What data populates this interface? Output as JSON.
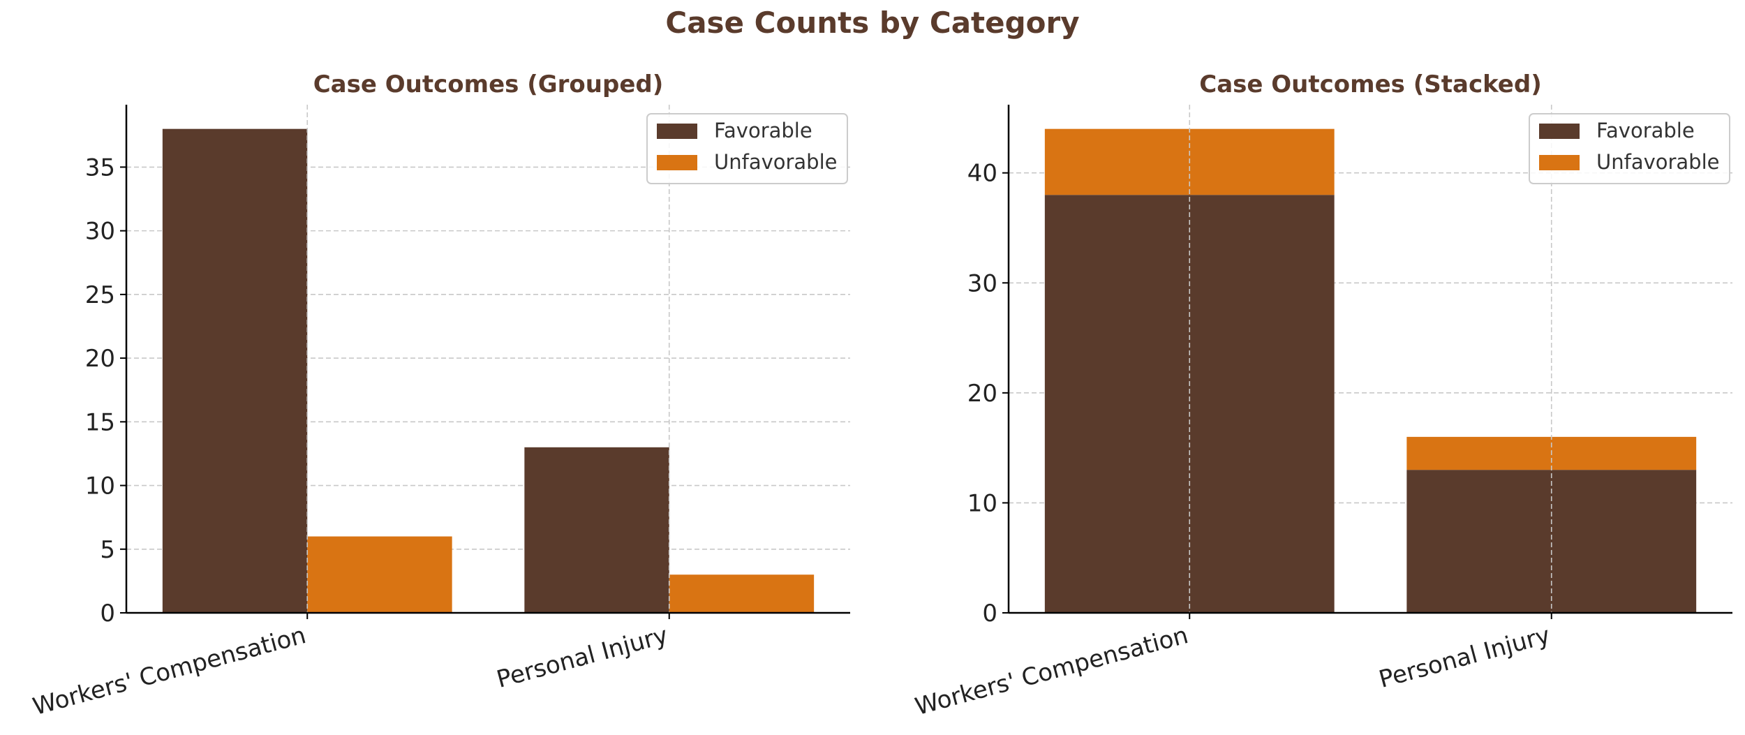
{
  "figure_title": "Case Counts by Category",
  "colors": {
    "favorable": "#5a3b2c",
    "unfavorable": "#d97413",
    "title": "#5a3b2c",
    "grid": "#c8c8c8"
  },
  "chart_data": [
    {
      "type": "bar",
      "mode": "grouped",
      "title": "Case Outcomes (Grouped)",
      "categories": [
        "Workers' Compensation",
        "Personal Injury"
      ],
      "series": [
        {
          "name": "Favorable",
          "values": [
            38,
            13
          ]
        },
        {
          "name": "Unfavorable",
          "values": [
            6,
            3
          ]
        }
      ],
      "ylim": [
        0,
        39.9
      ],
      "yticks": [
        0,
        5,
        10,
        15,
        20,
        25,
        30,
        35
      ],
      "grid": true,
      "legend": "top-right",
      "xlabel": "",
      "ylabel": ""
    },
    {
      "type": "bar",
      "mode": "stacked",
      "title": "Case Outcomes (Stacked)",
      "categories": [
        "Workers' Compensation",
        "Personal Injury"
      ],
      "series": [
        {
          "name": "Favorable",
          "values": [
            38,
            13
          ]
        },
        {
          "name": "Unfavorable",
          "values": [
            6,
            3
          ]
        }
      ],
      "ylim": [
        0,
        46.2
      ],
      "yticks": [
        0,
        10,
        20,
        30,
        40
      ],
      "grid": true,
      "legend": "top-right",
      "xlabel": "",
      "ylabel": ""
    }
  ]
}
